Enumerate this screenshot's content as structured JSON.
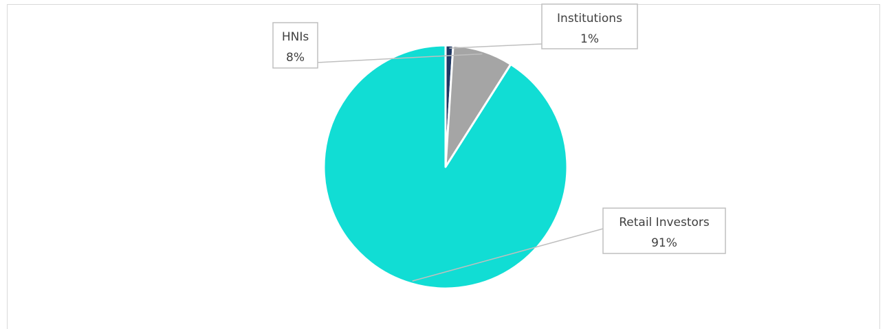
{
  "chart_data": {
    "type": "pie",
    "title": "",
    "slices": [
      {
        "label": "Institutions",
        "value": 1,
        "value_label": "1%",
        "color": "#1f3864"
      },
      {
        "label": "HNIs",
        "value": 8,
        "value_label": "8%",
        "color": "#a5a5a5"
      },
      {
        "label": "Retail Investors",
        "value": 91,
        "value_label": "91%",
        "color": "#11ddd4"
      }
    ],
    "legend": "none",
    "data_labels": "callout",
    "start_angle_degrees": 0,
    "direction": "clockwise"
  }
}
